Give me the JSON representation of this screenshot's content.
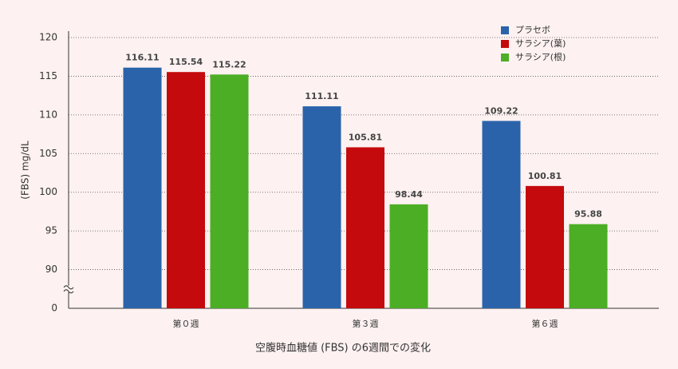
{
  "chart_data": {
    "type": "bar",
    "y_label": "(FBS) mg/dL",
    "x_label": "空腹時血糖値 (FBS) の6週間での変化",
    "categories": [
      "第０週",
      "第３週",
      "第６週"
    ],
    "series": [
      {
        "name": "プラセボ",
        "color": "#2a63aa",
        "values": [
          116.11,
          111.11,
          109.22
        ]
      },
      {
        "name": "サラシア(葉)",
        "color": "#c40a0c",
        "values": [
          115.54,
          105.81,
          100.81
        ]
      },
      {
        "name": "サラシア(根)",
        "color": "#4cae25",
        "values": [
          115.22,
          98.44,
          95.88
        ]
      }
    ],
    "ylim": [
      0,
      120
    ],
    "yticks": [
      0,
      90,
      95,
      100,
      105,
      110,
      115,
      120
    ],
    "broken_axis": true,
    "grid": true,
    "legend": "top-right"
  }
}
